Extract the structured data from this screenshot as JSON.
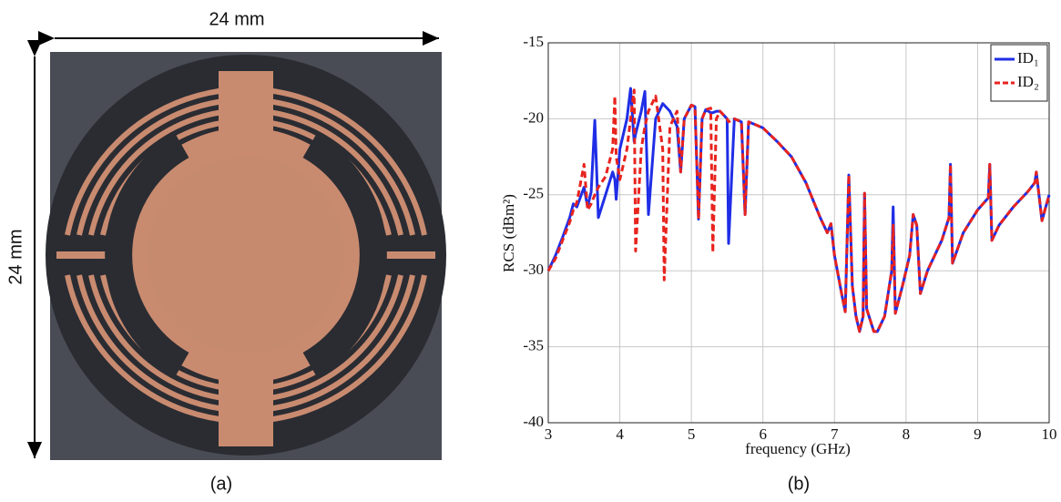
{
  "panel_a": {
    "width_label": "24 mm",
    "height_label": "24 mm",
    "caption": "(a)"
  },
  "chart_data": {
    "type": "line",
    "caption": "(b)",
    "x_label": "frequency (GHz)",
    "y_label": "RCS (dBm²)",
    "x": [
      3.0,
      3.1,
      3.2,
      3.3,
      3.35,
      3.4,
      3.5,
      3.55,
      3.6,
      3.65,
      3.7,
      3.8,
      3.9,
      3.93,
      3.95,
      4.0,
      4.1,
      4.15,
      4.2,
      4.22,
      4.3,
      4.35,
      4.4,
      4.5,
      4.6,
      4.62,
      4.7,
      4.8,
      4.85,
      4.9,
      5.0,
      5.05,
      5.1,
      5.15,
      5.2,
      5.27,
      5.3,
      5.35,
      5.4,
      5.5,
      5.52,
      5.6,
      5.7,
      5.75,
      5.8,
      6.0,
      6.2,
      6.4,
      6.6,
      6.8,
      6.9,
      6.95,
      7.0,
      7.1,
      7.15,
      7.2,
      7.25,
      7.3,
      7.35,
      7.4,
      7.42,
      7.45,
      7.55,
      7.6,
      7.7,
      7.8,
      7.82,
      7.85,
      7.95,
      8.05,
      8.1,
      8.15,
      8.2,
      8.3,
      8.5,
      8.6,
      8.62,
      8.65,
      8.8,
      9.0,
      9.15,
      9.17,
      9.2,
      9.3,
      9.5,
      9.7,
      9.8,
      9.82,
      9.9,
      10.0
    ],
    "series": [
      {
        "name": "ID₁",
        "color": "#1f2ee6",
        "dashed": false,
        "values": [
          -30,
          -29,
          -27.8,
          -26.5,
          -25.6,
          -25.8,
          -24.5,
          -25.8,
          -24.8,
          -20.1,
          -26.5,
          -25,
          -23.5,
          -24,
          -25.3,
          -22,
          -20,
          -18,
          -21.5,
          -21,
          -19.5,
          -18.2,
          -26.3,
          -20,
          -19,
          -19.1,
          -19.5,
          -20.5,
          -23.5,
          -20,
          -19.1,
          -19.2,
          -26.6,
          -20,
          -19.4,
          -19.6,
          -19.6,
          -19.5,
          -19.5,
          -20,
          -28.2,
          -20,
          -20.2,
          -26.3,
          -20.2,
          -20.6,
          -21.5,
          -22.5,
          -24.2,
          -26.5,
          -27.5,
          -26.9,
          -29,
          -31.5,
          -32.7,
          -23.7,
          -31,
          -33,
          -34,
          -33,
          -24.9,
          -32.5,
          -34,
          -34,
          -33,
          -30,
          -25.8,
          -32.8,
          -31,
          -29,
          -26.3,
          -27,
          -31.5,
          -30,
          -28,
          -26.5,
          -23,
          -29.5,
          -27.5,
          -26,
          -25.2,
          -23,
          -28,
          -27,
          -25.8,
          -24.8,
          -24.2,
          -23.5,
          -26.7,
          -25
        ]
      },
      {
        "name": "ID₂",
        "color": "#e8231e",
        "dashed": true,
        "values": [
          -30,
          -29.2,
          -28,
          -26.8,
          -26,
          -25.5,
          -23,
          -26,
          -25.6,
          -25,
          -24.5,
          -23.8,
          -22,
          -18.5,
          -22.5,
          -24,
          -22,
          -20,
          -18.1,
          -28.7,
          -22,
          -20.5,
          -19.5,
          -18.5,
          -22,
          -30.6,
          -20.5,
          -19.5,
          -23.5,
          -20,
          -19.1,
          -19.2,
          -26.6,
          -20,
          -19.4,
          -19.3,
          -28.8,
          -20,
          -19.5,
          -20,
          -20.2,
          -20,
          -20.2,
          -26.3,
          -20.2,
          -20.6,
          -21.5,
          -22.5,
          -24.2,
          -26.5,
          -27.5,
          -26.9,
          -29,
          -31.5,
          -32.7,
          -23.7,
          -31,
          -33,
          -34,
          -33,
          -24.9,
          -32.5,
          -34,
          -34,
          -33,
          -30,
          -27,
          -32.8,
          -31,
          -29,
          -26.3,
          -27,
          -31.5,
          -30,
          -28,
          -26.5,
          -23,
          -29.5,
          -27.5,
          -26,
          -25.2,
          -23,
          -28,
          -27,
          -25.8,
          -24.8,
          -24.2,
          -23.5,
          -26.7,
          -25
        ]
      }
    ],
    "xlim": [
      3,
      10
    ],
    "xticks": [
      3,
      4,
      5,
      6,
      7,
      8,
      9,
      10
    ],
    "ylim": [
      -40,
      -15
    ],
    "yticks": [
      -40,
      -35,
      -30,
      -25,
      -20,
      -15
    ],
    "grid": true,
    "legend": "upper right"
  }
}
